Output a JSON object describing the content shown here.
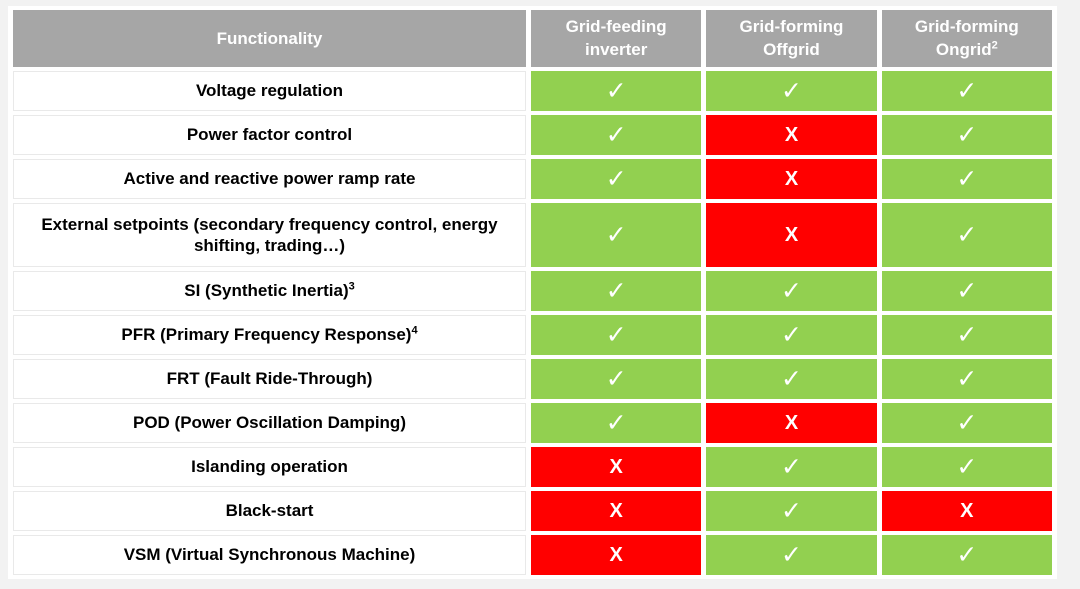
{
  "colors": {
    "page_background": "#f2f2f2",
    "header_gray": "#a6a6a6",
    "green": "#92d050",
    "red": "#ff0000",
    "mark_text": "#ffffff",
    "label_text": "#000000"
  },
  "table": {
    "marks": {
      "yes": "✓",
      "no": "X"
    },
    "header": {
      "functionality": "Functionality",
      "columns": [
        {
          "label": "Grid-feeding inverter",
          "superscript": ""
        },
        {
          "label": "Grid-forming Offgrid",
          "superscript": ""
        },
        {
          "label": "Grid-forming Ongrid",
          "superscript": "2"
        }
      ]
    },
    "rows": [
      {
        "label": "Voltage regulation",
        "superscript": "",
        "tall": false,
        "values": [
          "yes",
          "yes",
          "yes"
        ]
      },
      {
        "label": "Power factor control",
        "superscript": "",
        "tall": false,
        "values": [
          "yes",
          "no",
          "yes"
        ]
      },
      {
        "label": "Active and reactive power ramp rate",
        "superscript": "",
        "tall": false,
        "values": [
          "yes",
          "no",
          "yes"
        ]
      },
      {
        "label": "External setpoints (secondary frequency control, energy shifting, trading…)",
        "superscript": "",
        "tall": true,
        "values": [
          "yes",
          "no",
          "yes"
        ]
      },
      {
        "label": "SI (Synthetic Inertia)",
        "superscript": "3",
        "tall": false,
        "values": [
          "yes",
          "yes",
          "yes"
        ]
      },
      {
        "label": "PFR (Primary Frequency Response)",
        "superscript": "4",
        "tall": false,
        "values": [
          "yes",
          "yes",
          "yes"
        ]
      },
      {
        "label": "FRT (Fault Ride-Through)",
        "superscript": "",
        "tall": false,
        "values": [
          "yes",
          "yes",
          "yes"
        ]
      },
      {
        "label": "POD (Power Oscillation Damping)",
        "superscript": "",
        "tall": false,
        "values": [
          "yes",
          "no",
          "yes"
        ]
      },
      {
        "label": "Islanding operation",
        "superscript": "",
        "tall": false,
        "values": [
          "no",
          "yes",
          "yes"
        ]
      },
      {
        "label": "Black-start",
        "superscript": "",
        "tall": false,
        "values": [
          "no",
          "yes",
          "no"
        ]
      },
      {
        "label": "VSM (Virtual Synchronous Machine)",
        "superscript": "",
        "tall": false,
        "values": [
          "no",
          "yes",
          "yes"
        ]
      }
    ]
  }
}
